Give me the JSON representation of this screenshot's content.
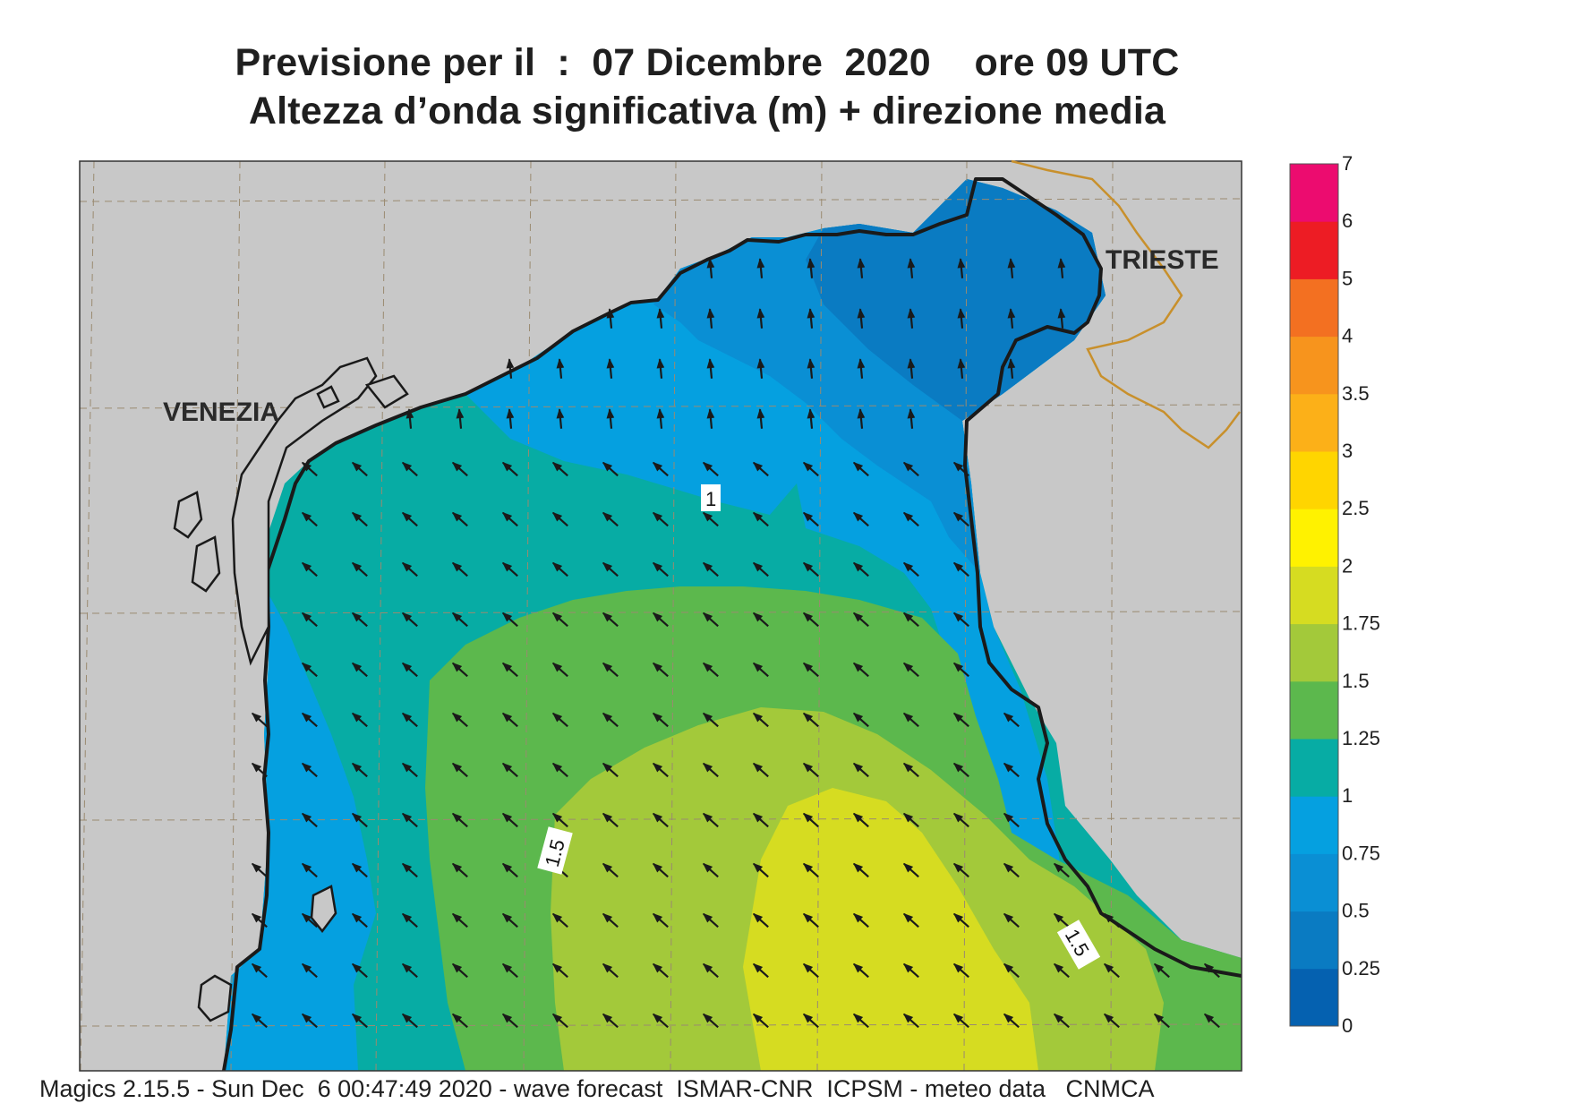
{
  "title_line1": "Previsione per il  :  07 Dicembre  2020    ore 09 UTC",
  "title_line2": "Altezza d’onda significativa (m) + direzione media",
  "footer": "Magics 2.15.5 - Sun Dec  6 00:47:49 2020 - wave forecast  ISMAR-CNR  ICPSM - meteo data   CNMCA",
  "place_labels": {
    "venezia": "VENEZIA",
    "trieste": "TRIESTE"
  },
  "contour_labels": [
    "1",
    "1.5",
    "1.5"
  ],
  "colors": {
    "land": "#c8c8c8",
    "levels": [
      "#0561b0",
      "#0a7bc2",
      "#0a8fd4",
      "#05a0e0",
      "#07aca4",
      "#5cb84d",
      "#a3c93a",
      "#d6dc21",
      "#fff200",
      "#ffd500",
      "#fcb018",
      "#f7941d",
      "#f37021",
      "#ed1c24",
      "#ec0c6f"
    ],
    "border": "#c8902c",
    "coast": "#1a1a1a"
  },
  "legend": {
    "ticks": [
      "0",
      "0.25",
      "0.5",
      "0.75",
      "1",
      "1.25",
      "1.5",
      "1.75",
      "2",
      "2.5",
      "3",
      "3.5",
      "4",
      "5",
      "6",
      "7"
    ]
  },
  "arrow_direction": "north-west"
}
